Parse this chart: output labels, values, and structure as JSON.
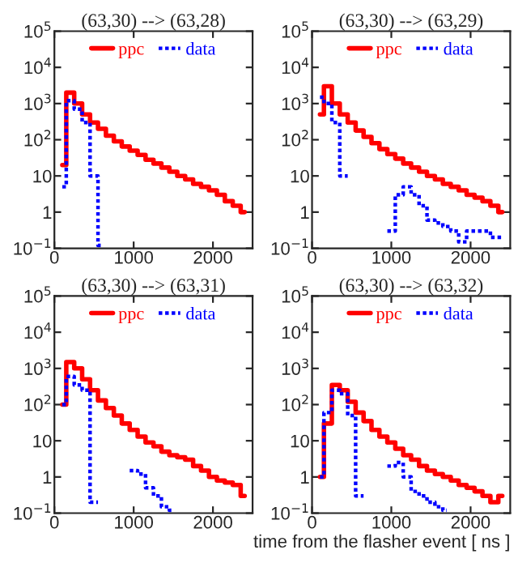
{
  "chart_data": [
    {
      "type": "step",
      "title": "(63,30) --> (63,28)",
      "x": [
        100,
        200,
        300,
        400,
        500,
        600,
        700,
        800,
        900,
        1000,
        1100,
        1200,
        1300,
        1400,
        1500,
        1600,
        1700,
        1800,
        1900,
        2000,
        2100,
        2200,
        2300,
        2400
      ],
      "log": "y",
      "xlim": [
        0,
        2500
      ],
      "xticks": [
        0,
        1000,
        2000
      ],
      "ylim": [
        0.1,
        100000
      ],
      "yticks": [
        {
          "value": 0.1,
          "label": "10$^{−1}$"
        },
        1,
        10,
        {
          "value": 100,
          "label": "10$^{2}$"
        },
        {
          "value": 1000,
          "label": "10$^{3}$"
        },
        {
          "value": 10000,
          "label": "10$^{4}$"
        },
        {
          "value": 100000,
          "label": "10$^{5}$"
        }
      ],
      "legend": "top",
      "grid": false,
      "series": [
        {
          "name": "ppc",
          "color": "#ff0000",
          "line_style": "solid",
          "values": [
            20,
            2000,
            1000,
            500,
            300,
            200,
            130,
            90,
            65,
            50,
            38,
            28,
            22,
            17,
            13,
            10,
            8,
            6,
            5,
            4,
            3,
            2,
            1.5,
            1
          ]
        },
        {
          "name": "data",
          "color": "#0000ff",
          "line_style": "dotted",
          "values": [
            5,
            1200,
            700,
            300,
            10,
            0.12,
            null,
            null,
            null,
            null,
            null,
            null,
            null,
            null,
            null,
            null,
            null,
            null,
            null,
            null,
            null,
            null,
            null,
            null
          ]
        }
      ]
    },
    {
      "type": "step",
      "title": "(63,30) --> (63,29)",
      "x": [
        100,
        200,
        300,
        400,
        500,
        600,
        700,
        800,
        900,
        1000,
        1100,
        1200,
        1300,
        1400,
        1500,
        1600,
        1700,
        1800,
        1900,
        2000,
        2100,
        2200,
        2300,
        2400
      ],
      "log": "y",
      "xlim": [
        0,
        2500
      ],
      "xticks": [
        0,
        1000,
        2000
      ],
      "ylim": [
        0.1,
        100000
      ],
      "yticks": [
        {
          "value": 0.1,
          "label": "10$^{−1}$"
        },
        1,
        10,
        {
          "value": 100,
          "label": "10$^{2}$"
        },
        {
          "value": 1000,
          "label": "10$^{3}$"
        },
        {
          "value": 10000,
          "label": "10$^{4}$"
        },
        {
          "value": 100000,
          "label": "10$^{5}$"
        }
      ],
      "legend": "top",
      "grid": false,
      "series": [
        {
          "name": "ppc",
          "color": "#ff0000",
          "line_style": "solid",
          "values": [
            500,
            3000,
            1000,
            500,
            300,
            180,
            120,
            80,
            55,
            40,
            30,
            22,
            17,
            13,
            10,
            8,
            6,
            5,
            4,
            3,
            2.5,
            2,
            1.5,
            1
          ]
        },
        {
          "name": "data",
          "color": "#0000ff",
          "line_style": "dotted",
          "values": [
            1500,
            1000,
            300,
            10,
            null,
            null,
            null,
            null,
            null,
            0.3,
            3,
            5,
            3,
            1.5,
            0.6,
            0.5,
            0.4,
            0.3,
            0.15,
            0.3,
            0.3,
            0.3,
            0.2,
            0.2
          ]
        }
      ]
    },
    {
      "type": "step",
      "title": "(63,30) --> (63,31)",
      "x": [
        100,
        200,
        300,
        400,
        500,
        600,
        700,
        800,
        900,
        1000,
        1100,
        1200,
        1300,
        1400,
        1500,
        1600,
        1700,
        1800,
        1900,
        2000,
        2100,
        2200,
        2300,
        2400
      ],
      "log": "y",
      "xlim": [
        0,
        2500
      ],
      "xticks": [
        0,
        1000,
        2000
      ],
      "ylim": [
        0.1,
        100000
      ],
      "yticks": [
        {
          "value": 0.1,
          "label": "10$^{−1}$"
        },
        1,
        10,
        {
          "value": 100,
          "label": "10$^{2}$"
        },
        {
          "value": 1000,
          "label": "10$^{3}$"
        },
        {
          "value": 10000,
          "label": "10$^{4}$"
        },
        {
          "value": 100000,
          "label": "10$^{5}$"
        }
      ],
      "legend": "top",
      "grid": false,
      "series": [
        {
          "name": "ppc",
          "color": "#ff0000",
          "line_style": "solid",
          "values": [
            100,
            1500,
            1000,
            500,
            250,
            130,
            80,
            50,
            30,
            20,
            13,
            9,
            7,
            5,
            4,
            3.5,
            3,
            2,
            1.5,
            1,
            0.8,
            0.7,
            0.6,
            0.3
          ]
        },
        {
          "name": "data",
          "color": "#0000ff",
          "line_style": "dotted",
          "values": [
            100,
            600,
            350,
            250,
            0.2,
            null,
            null,
            null,
            null,
            1.5,
            1.2,
            0.5,
            0.3,
            0.15,
            0.12,
            null,
            null,
            null,
            null,
            null,
            null,
            null,
            null,
            null
          ]
        }
      ]
    },
    {
      "type": "step",
      "title": "(63,30) --> (63,32)",
      "xlabel": "time from the flasher event [ ns ]",
      "x": [
        100,
        200,
        300,
        400,
        500,
        600,
        700,
        800,
        900,
        1000,
        1100,
        1200,
        1300,
        1400,
        1500,
        1600,
        1700,
        1800,
        1900,
        2000,
        2100,
        2200,
        2300,
        2400
      ],
      "log": "y",
      "xlim": [
        0,
        2500
      ],
      "xticks": [
        0,
        1000,
        2000
      ],
      "ylim": [
        0.1,
        100000
      ],
      "yticks": [
        {
          "value": 0.1,
          "label": "10$^{−1}$"
        },
        1,
        10,
        {
          "value": 100,
          "label": "10$^{2}$"
        },
        {
          "value": 1000,
          "label": "10$^{3}$"
        },
        {
          "value": 10000,
          "label": "10$^{4}$"
        },
        {
          "value": 100000,
          "label": "10$^{5}$"
        }
      ],
      "legend": "top",
      "grid": false,
      "series": [
        {
          "name": "ppc",
          "color": "#ff0000",
          "line_style": "solid",
          "values": [
            1,
            30,
            350,
            250,
            120,
            60,
            35,
            20,
            13,
            9,
            6,
            4,
            3,
            2,
            1.5,
            1.2,
            1,
            0.8,
            0.6,
            0.5,
            0.4,
            0.3,
            0.2,
            0.3
          ]
        },
        {
          "name": "data",
          "color": "#0000ff",
          "line_style": "dotted",
          "values": [
            1,
            60,
            250,
            200,
            50,
            0.3,
            null,
            null,
            null,
            2,
            2.5,
            1,
            0.4,
            0.3,
            0.2,
            0.15,
            0.12,
            null,
            null,
            null,
            null,
            null,
            null,
            null
          ]
        }
      ]
    }
  ]
}
